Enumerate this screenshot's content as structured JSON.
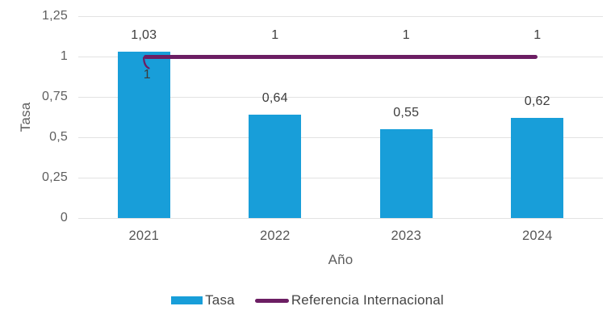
{
  "colors": {
    "bar": "#189ED9",
    "line": "#6C1E63",
    "grid": "#E2E2E2",
    "data_label": "#3C3C3C",
    "axis_label": "#5E5E5E"
  },
  "chart_data": {
    "type": "bar",
    "categories": [
      "2021",
      "2022",
      "2023",
      "2024"
    ],
    "series": [
      {
        "name": "Tasa",
        "type": "bar",
        "values": [
          1.03,
          0.64,
          0.55,
          0.62
        ],
        "labels": [
          "1,03",
          "0,64",
          "0,55",
          "0,62"
        ],
        "color": "#189ED9"
      },
      {
        "name": "Referencia Internacional",
        "type": "line",
        "values": [
          1,
          1,
          1,
          1
        ],
        "labels": [
          "1",
          "1",
          "1",
          "1"
        ],
        "color": "#6C1E63"
      }
    ],
    "xlabel": "Año",
    "ylabel": "Tasa",
    "ylim": [
      0,
      1.25
    ],
    "yticks": [
      0,
      0.25,
      0.5,
      0.75,
      1,
      1.25
    ],
    "ytick_labels": [
      "0",
      "0,25",
      "0,5",
      "0,75",
      "1",
      "1,25"
    ],
    "grid": "horizontal",
    "legend_position": "bottom",
    "decimal_separator": ","
  },
  "legend": {
    "items": [
      {
        "label": "Tasa",
        "swatch": "bar"
      },
      {
        "label": "Referencia Internacional",
        "swatch": "line"
      }
    ]
  }
}
